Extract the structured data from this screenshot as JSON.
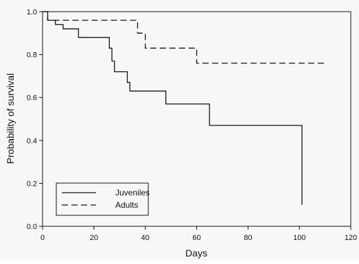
{
  "chart_data": {
    "type": "line",
    "xlabel": "Days",
    "ylabel": "Probability of survival",
    "xlim": [
      0,
      120
    ],
    "ylim": [
      0.0,
      1.0
    ],
    "x_ticks": [
      "0",
      "20",
      "40",
      "60",
      "80",
      "100",
      "120"
    ],
    "y_ticks": [
      "0.0",
      "0.2",
      "0.4",
      "0.6",
      "0.8",
      "1.0"
    ],
    "grid": false,
    "legend_position": "bottom-left",
    "series": [
      {
        "name": "Juveniles",
        "line_style": "solid",
        "color": "#111111",
        "step_points": [
          [
            0,
            1.0
          ],
          [
            2,
            0.96
          ],
          [
            5,
            0.94
          ],
          [
            8,
            0.92
          ],
          [
            14,
            0.88
          ],
          [
            26,
            0.83
          ],
          [
            27,
            0.77
          ],
          [
            28,
            0.72
          ],
          [
            31,
            0.72
          ],
          [
            33,
            0.67
          ],
          [
            34,
            0.63
          ],
          [
            48,
            0.57
          ],
          [
            65,
            0.47
          ],
          [
            101,
            0.1
          ]
        ]
      },
      {
        "name": "Adults",
        "line_style": "dashed",
        "color": "#111111",
        "step_points": [
          [
            0,
            1.0
          ],
          [
            2,
            0.96
          ],
          [
            37,
            0.9
          ],
          [
            40,
            0.83
          ],
          [
            60,
            0.76
          ],
          [
            110,
            0.76
          ]
        ]
      }
    ]
  }
}
